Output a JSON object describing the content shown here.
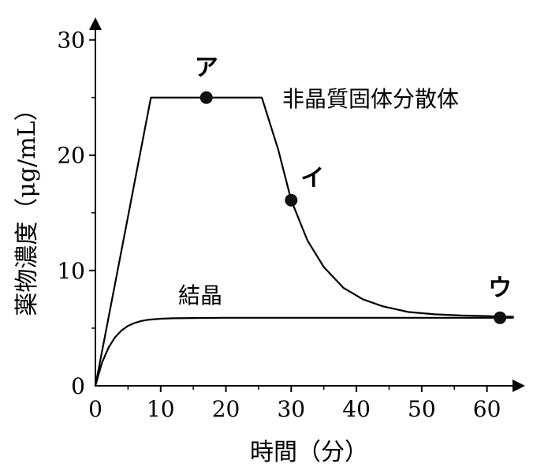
{
  "chart_data": {
    "type": "line",
    "xlabel": "時間（分）",
    "ylabel": "薬物濃度（μg/mL）",
    "xlim": [
      0,
      65
    ],
    "ylim": [
      0,
      31
    ],
    "x_ticks": [
      0,
      10,
      20,
      30,
      40,
      50,
      60
    ],
    "y_ticks": [
      0,
      10,
      20,
      30
    ],
    "series": [
      {
        "name": "非晶質固体分散体",
        "x": [
          0,
          8.5,
          17,
          25.5,
          28,
          30,
          32.5,
          35,
          38,
          41,
          44,
          48,
          52,
          56,
          60,
          62,
          64
        ],
        "y": [
          0,
          25,
          25,
          25,
          20.5,
          16.1,
          12.6,
          10.3,
          8.5,
          7.5,
          6.9,
          6.4,
          6.2,
          6.1,
          6.05,
          6.0,
          6.0
        ]
      },
      {
        "name": "結晶",
        "x": [
          0,
          1,
          2,
          3,
          4,
          5,
          6,
          7,
          8,
          10,
          12,
          15,
          20,
          30,
          40,
          50,
          60,
          64
        ],
        "y": [
          0,
          2.0,
          3.3,
          4.2,
          4.8,
          5.2,
          5.45,
          5.62,
          5.72,
          5.82,
          5.86,
          5.88,
          5.9,
          5.9,
          5.9,
          5.9,
          5.9,
          5.9
        ]
      }
    ],
    "annotations": [
      {
        "text": "ア",
        "x": 17,
        "y": 25
      },
      {
        "text": "イ",
        "x": 30,
        "y": 16.1
      },
      {
        "text": "ウ",
        "x": 62,
        "y": 5.9
      }
    ],
    "grid": false
  }
}
